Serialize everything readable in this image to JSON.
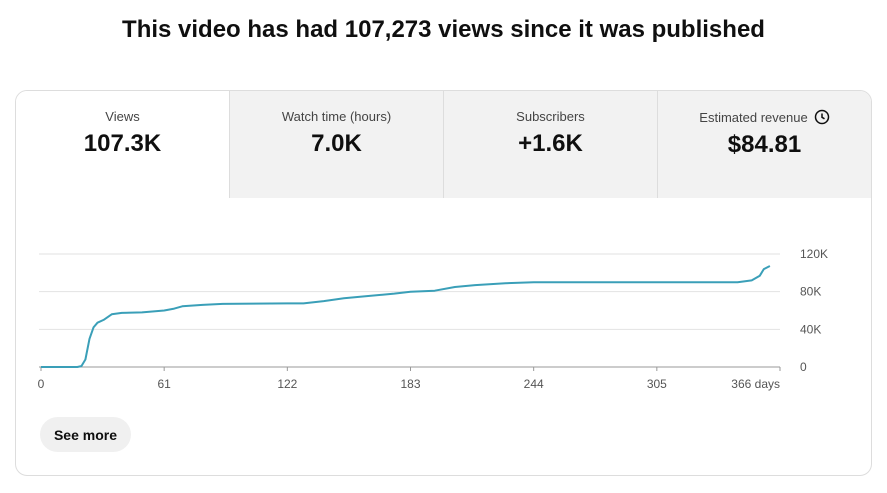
{
  "header": {
    "title": "This video has had 107,273 views since it was published"
  },
  "tabs": [
    {
      "label": "Views",
      "value": "107.3K"
    },
    {
      "label": "Watch time (hours)",
      "value": "7.0K"
    },
    {
      "label": "Subscribers",
      "value": "+1.6K"
    },
    {
      "label": "Estimated revenue",
      "value": "$84.81"
    }
  ],
  "chart_data": {
    "type": "line",
    "color": "#3a9fb8",
    "grid": true,
    "x": [
      0,
      18,
      20,
      22,
      24,
      26,
      28,
      31,
      35,
      40,
      50,
      61,
      66,
      70,
      80,
      90,
      122,
      130,
      140,
      150,
      160,
      175,
      183,
      195,
      205,
      215,
      230,
      244,
      280,
      320,
      345,
      352,
      356,
      358,
      361
    ],
    "values": [
      0,
      0,
      1000,
      8000,
      30000,
      42000,
      47000,
      50000,
      56000,
      57500,
      58000,
      60000,
      62000,
      64500,
      66000,
      67000,
      67500,
      67500,
      70000,
      73000,
      75000,
      78000,
      80000,
      81000,
      85000,
      87000,
      89000,
      90000,
      90000,
      90000,
      90000,
      92000,
      97000,
      104000,
      107273
    ],
    "xlim": [
      0,
      366
    ],
    "xticks": [
      0,
      61,
      122,
      183,
      244,
      305,
      {
        "value": 366,
        "label": "366 days"
      }
    ],
    "ylim": [
      0,
      120000
    ],
    "yticks": [
      0,
      {
        "value": 40000,
        "label": "40K"
      },
      {
        "value": 80000,
        "label": "80K"
      },
      {
        "value": 120000,
        "label": "120K"
      }
    ]
  },
  "button": "See more"
}
